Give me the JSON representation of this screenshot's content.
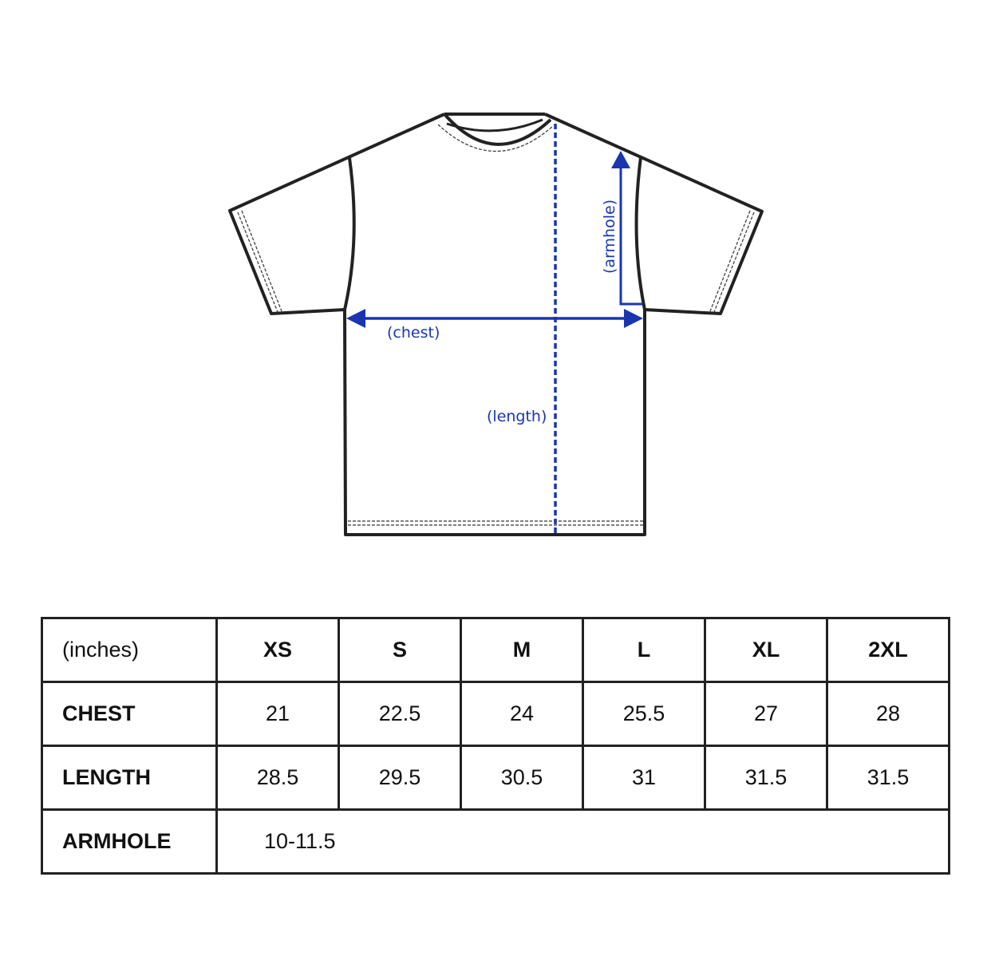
{
  "diagram": {
    "labels": {
      "chest": "(chest)",
      "length": "(length)",
      "armhole": "(armhole)"
    },
    "colors": {
      "measure": "#1a35b0",
      "outline": "#222222"
    }
  },
  "table": {
    "unit": "(inches)",
    "sizes": [
      "XS",
      "S",
      "M",
      "L",
      "XL",
      "2XL"
    ],
    "rows": [
      {
        "label": "CHEST",
        "values": [
          "21",
          "22.5",
          "24",
          "25.5",
          "27",
          "28"
        ]
      },
      {
        "label": "LENGTH",
        "values": [
          "28.5",
          "29.5",
          "30.5",
          "31",
          "31.5",
          "31.5"
        ]
      }
    ],
    "armhole": {
      "label": "ARMHOLE",
      "value": "10-11.5"
    }
  }
}
